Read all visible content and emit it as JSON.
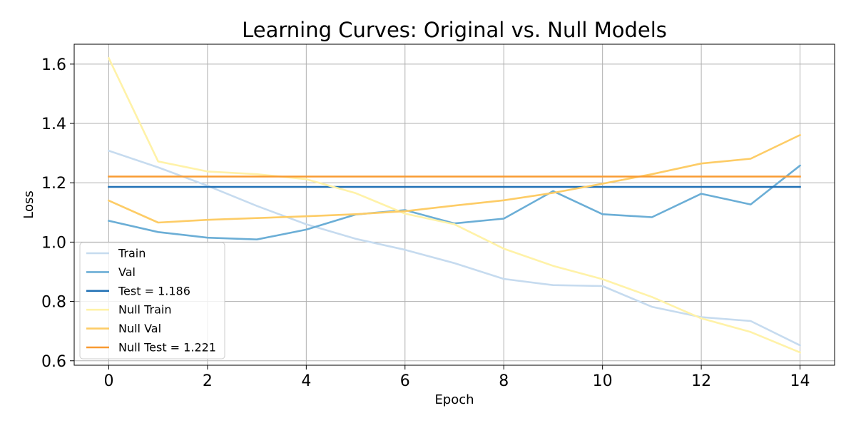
{
  "chart_data": {
    "type": "line",
    "title": "Learning Curves: Original vs. Null Models",
    "xlabel": "Epoch",
    "ylabel": "Loss",
    "xlim": [
      -0.7,
      14.7
    ],
    "ylim": [
      0.585,
      1.667
    ],
    "xticks": [
      0,
      2,
      4,
      6,
      8,
      10,
      12,
      14
    ],
    "yticks": [
      0.6,
      0.8,
      1.0,
      1.2,
      1.4,
      1.6
    ],
    "ytick_labels": [
      "0.6",
      "0.8",
      "1.0",
      "1.2",
      "1.4",
      "1.6"
    ],
    "grid": true,
    "legend_position": "lower-left",
    "x": [
      0,
      1,
      2,
      3,
      4,
      5,
      6,
      7,
      8,
      9,
      10,
      11,
      12,
      13,
      14
    ],
    "series": [
      {
        "name": "Train",
        "color": "#c6dbef",
        "values": [
          1.308,
          1.252,
          1.19,
          1.122,
          1.06,
          1.011,
          0.974,
          0.929,
          0.876,
          0.855,
          0.852,
          0.782,
          0.747,
          0.734,
          0.652
        ]
      },
      {
        "name": "Val",
        "color": "#6baed6",
        "values": [
          1.072,
          1.034,
          1.015,
          1.009,
          1.042,
          1.093,
          1.108,
          1.063,
          1.079,
          1.172,
          1.094,
          1.084,
          1.163,
          1.127,
          1.258
        ]
      },
      {
        "name": "Test = 1.186",
        "color": "#2171b5",
        "constant": 1.186
      },
      {
        "name": "Null Train",
        "color": "#fff2a8",
        "values": [
          1.62,
          1.272,
          1.238,
          1.229,
          1.212,
          1.165,
          1.096,
          1.06,
          0.978,
          0.92,
          0.875,
          0.815,
          0.743,
          0.697,
          0.628
        ]
      },
      {
        "name": "Null Val",
        "color": "#fdcc66",
        "values": [
          1.14,
          1.066,
          1.075,
          1.081,
          1.087,
          1.094,
          1.104,
          1.123,
          1.141,
          1.166,
          1.197,
          1.229,
          1.265,
          1.281,
          1.361
        ]
      },
      {
        "name": "Null Test = 1.221",
        "color": "#f99b32",
        "constant": 1.221
      }
    ]
  }
}
